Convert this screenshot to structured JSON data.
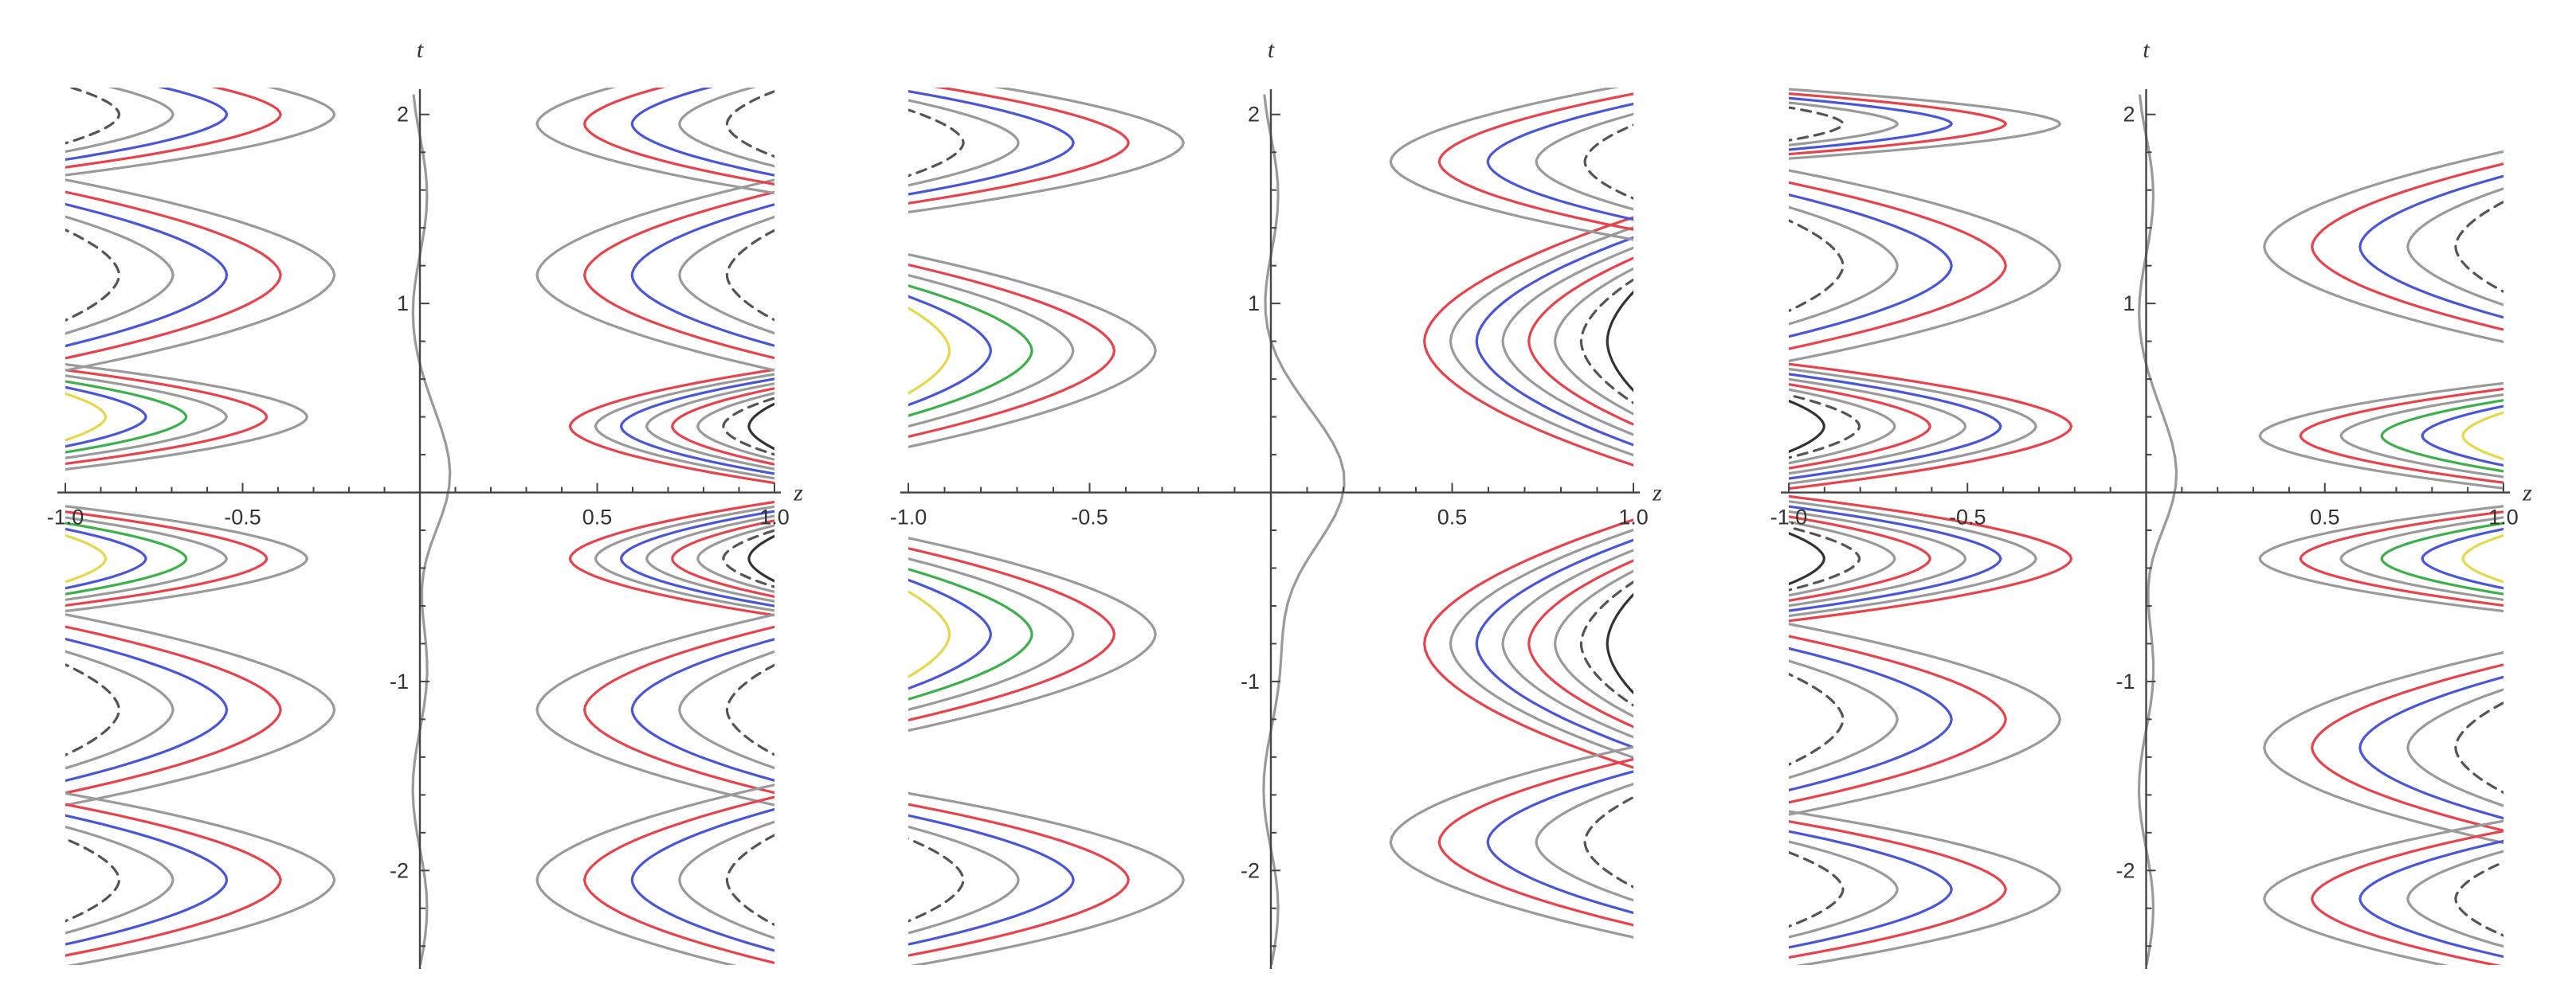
{
  "colors": {
    "background": "#ffffff",
    "axes": "#444444",
    "gray": "#9a9a9a",
    "red": "#e8424c",
    "blue": "#4a56d8",
    "green": "#3cb04a",
    "yellow": "#e6d84a",
    "black": "#333333",
    "dashed": "#555555"
  },
  "chart_data": [
    {
      "type": "contour",
      "title": "",
      "xlabel": "z",
      "ylabel": "t",
      "xlim": [
        -1.0,
        1.0
      ],
      "ylim": [
        -2.5,
        2.1
      ],
      "xticks": [
        -1.0,
        -0.5,
        0.5,
        1.0
      ],
      "yticks": [
        -2,
        -1,
        1,
        2
      ],
      "xtick_labels": [
        "-1.0",
        "-0.5",
        "0.5",
        "1.0"
      ],
      "ytick_labels": [
        "-2",
        "-1",
        "1",
        "2"
      ],
      "grid": false,
      "legend": "none",
      "contour_colors": [
        "gray",
        "red",
        "blue",
        "green",
        "yellow",
        "black",
        "dashed"
      ]
    },
    {
      "type": "contour",
      "title": "",
      "xlabel": "z",
      "ylabel": "t",
      "xlim": [
        -1.0,
        1.0
      ],
      "ylim": [
        -2.5,
        2.1
      ],
      "xticks": [
        -1.0,
        -0.5,
        0.5,
        1.0
      ],
      "yticks": [
        -2,
        -1,
        1,
        2
      ],
      "xtick_labels": [
        "-1.0",
        "-0.5",
        "0.5",
        "1.0"
      ],
      "ytick_labels": [
        "-2",
        "-1",
        "1",
        "2"
      ],
      "grid": false,
      "legend": "none",
      "contour_colors": [
        "gray",
        "red",
        "blue",
        "green",
        "yellow",
        "black",
        "dashed"
      ]
    },
    {
      "type": "contour",
      "title": "",
      "xlabel": "z",
      "ylabel": "t",
      "xlim": [
        -1.0,
        1.0
      ],
      "ylim": [
        -2.5,
        2.1
      ],
      "xticks": [
        -1.0,
        -0.5,
        0.5,
        1.0
      ],
      "yticks": [
        -2,
        -1,
        1,
        2
      ],
      "xtick_labels": [
        "-1.0",
        "-0.5",
        "0.5",
        "1.0"
      ],
      "ytick_labels": [
        "-2",
        "-1",
        "1",
        "2"
      ],
      "grid": false,
      "legend": "none",
      "contour_colors": [
        "gray",
        "red",
        "blue",
        "green",
        "yellow",
        "black",
        "dashed"
      ]
    }
  ]
}
